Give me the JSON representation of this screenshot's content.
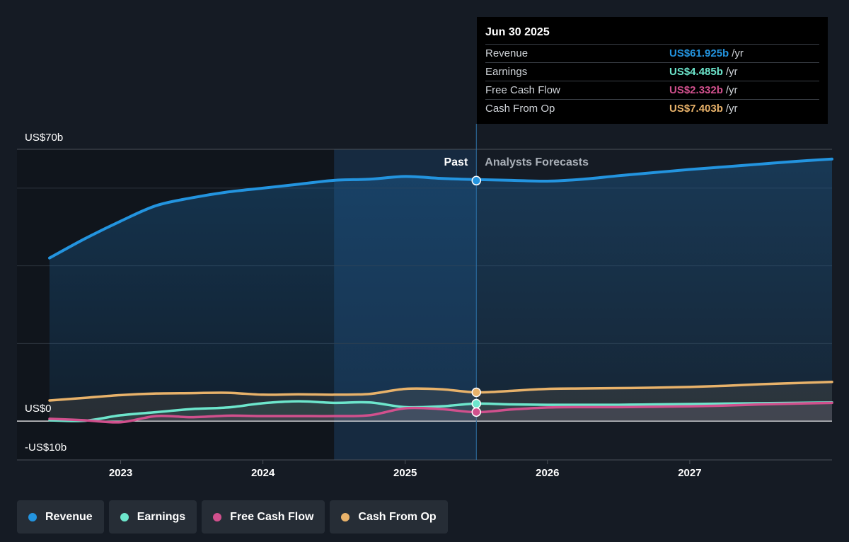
{
  "tooltip": {
    "date": "Jun 30 2025",
    "rows": [
      {
        "label": "Revenue",
        "value": "US$61.925b",
        "unit": "/yr",
        "color": "#2394df"
      },
      {
        "label": "Earnings",
        "value": "US$4.485b",
        "unit": "/yr",
        "color": "#6de6cc"
      },
      {
        "label": "Free Cash Flow",
        "value": "US$2.332b",
        "unit": "/yr",
        "color": "#d1508d"
      },
      {
        "label": "Cash From Op",
        "value": "US$7.403b",
        "unit": "/yr",
        "color": "#e8b26a"
      }
    ]
  },
  "legend": [
    {
      "label": "Revenue",
      "color": "#2394df"
    },
    {
      "label": "Earnings",
      "color": "#6de6cc"
    },
    {
      "label": "Free Cash Flow",
      "color": "#d1508d"
    },
    {
      "label": "Cash From Op",
      "color": "#e8b26a"
    }
  ],
  "chart_data": {
    "type": "line",
    "y_labels": {
      "top": "US$70b",
      "zero": "US$0",
      "bottom": "-US$10b"
    },
    "ylim": [
      -10,
      70
    ],
    "xlim": [
      2022.5,
      2028.0
    ],
    "x_ticks": [
      2023,
      2024,
      2025,
      2026,
      2027
    ],
    "x_tick_labels": [
      "2023",
      "2024",
      "2025",
      "2026",
      "2027"
    ],
    "grid": true,
    "past_label": "Past",
    "forecast_label": "Analysts Forecasts",
    "past_start": 2024.5,
    "forecast_start": 2025.5,
    "series": [
      {
        "name": "Revenue",
        "color": "#2394df",
        "area": true,
        "points": [
          [
            2022.5,
            42.0
          ],
          [
            2022.75,
            47.0
          ],
          [
            2023.0,
            51.5
          ],
          [
            2023.25,
            55.5
          ],
          [
            2023.5,
            57.5
          ],
          [
            2023.75,
            59.0
          ],
          [
            2024.0,
            60.0
          ],
          [
            2024.25,
            61.0
          ],
          [
            2024.5,
            62.0
          ],
          [
            2024.75,
            62.3
          ],
          [
            2025.0,
            63.0
          ],
          [
            2025.25,
            62.5
          ],
          [
            2025.5,
            62.2
          ],
          [
            2025.75,
            62.0
          ],
          [
            2026.0,
            61.8
          ],
          [
            2026.25,
            62.3
          ],
          [
            2026.5,
            63.2
          ],
          [
            2026.75,
            64.0
          ],
          [
            2027.0,
            64.8
          ],
          [
            2027.25,
            65.5
          ],
          [
            2027.5,
            66.2
          ],
          [
            2027.75,
            66.9
          ],
          [
            2028.0,
            67.5
          ]
        ]
      },
      {
        "name": "Cash From Op",
        "color": "#e8b26a",
        "points": [
          [
            2022.5,
            5.3
          ],
          [
            2022.75,
            6.0
          ],
          [
            2023.0,
            6.7
          ],
          [
            2023.25,
            7.1
          ],
          [
            2023.5,
            7.2
          ],
          [
            2023.75,
            7.3
          ],
          [
            2024.0,
            6.8
          ],
          [
            2024.25,
            6.9
          ],
          [
            2024.5,
            6.8
          ],
          [
            2024.75,
            7.0
          ],
          [
            2025.0,
            8.3
          ],
          [
            2025.25,
            8.2
          ],
          [
            2025.5,
            7.4
          ],
          [
            2025.75,
            7.8
          ],
          [
            2026.0,
            8.3
          ],
          [
            2026.25,
            8.4
          ],
          [
            2026.5,
            8.5
          ],
          [
            2026.75,
            8.6
          ],
          [
            2027.0,
            8.8
          ],
          [
            2027.25,
            9.1
          ],
          [
            2027.5,
            9.5
          ],
          [
            2027.75,
            9.8
          ],
          [
            2028.0,
            10.1
          ]
        ]
      },
      {
        "name": "Earnings",
        "color": "#6de6cc",
        "points": [
          [
            2022.5,
            0.2
          ],
          [
            2022.75,
            0.1
          ],
          [
            2023.0,
            1.5
          ],
          [
            2023.25,
            2.3
          ],
          [
            2023.5,
            3.1
          ],
          [
            2023.75,
            3.5
          ],
          [
            2024.0,
            4.6
          ],
          [
            2024.25,
            5.1
          ],
          [
            2024.5,
            4.7
          ],
          [
            2024.75,
            4.8
          ],
          [
            2025.0,
            3.6
          ],
          [
            2025.25,
            3.8
          ],
          [
            2025.5,
            4.5
          ],
          [
            2025.75,
            4.3
          ],
          [
            2026.0,
            4.2
          ],
          [
            2026.25,
            4.2
          ],
          [
            2026.5,
            4.2
          ],
          [
            2026.75,
            4.3
          ],
          [
            2027.0,
            4.4
          ],
          [
            2027.25,
            4.5
          ],
          [
            2027.5,
            4.6
          ],
          [
            2027.75,
            4.7
          ],
          [
            2028.0,
            4.8
          ]
        ]
      },
      {
        "name": "Free Cash Flow",
        "color": "#d1508d",
        "points": [
          [
            2022.5,
            0.6
          ],
          [
            2022.75,
            0.2
          ],
          [
            2023.0,
            -0.3
          ],
          [
            2023.25,
            1.3
          ],
          [
            2023.5,
            1.0
          ],
          [
            2023.75,
            1.4
          ],
          [
            2024.0,
            1.3
          ],
          [
            2024.25,
            1.3
          ],
          [
            2024.5,
            1.3
          ],
          [
            2024.75,
            1.5
          ],
          [
            2025.0,
            3.3
          ],
          [
            2025.25,
            3.1
          ],
          [
            2025.5,
            2.3
          ],
          [
            2025.75,
            3.0
          ],
          [
            2026.0,
            3.5
          ],
          [
            2026.25,
            3.6
          ],
          [
            2026.5,
            3.6
          ],
          [
            2026.75,
            3.7
          ],
          [
            2027.0,
            3.8
          ],
          [
            2027.25,
            4.0
          ],
          [
            2027.5,
            4.3
          ],
          [
            2027.75,
            4.5
          ],
          [
            2028.0,
            4.7
          ]
        ]
      }
    ],
    "markers": [
      {
        "name": "Revenue",
        "x": 2025.5,
        "y": 61.925,
        "color": "#2394df"
      },
      {
        "name": "Cash From Op",
        "x": 2025.5,
        "y": 7.403,
        "color": "#e8b26a"
      },
      {
        "name": "Earnings",
        "x": 2025.5,
        "y": 4.485,
        "color": "#6de6cc"
      },
      {
        "name": "Free Cash Flow",
        "x": 2025.5,
        "y": 2.332,
        "color": "#d1508d"
      }
    ]
  }
}
